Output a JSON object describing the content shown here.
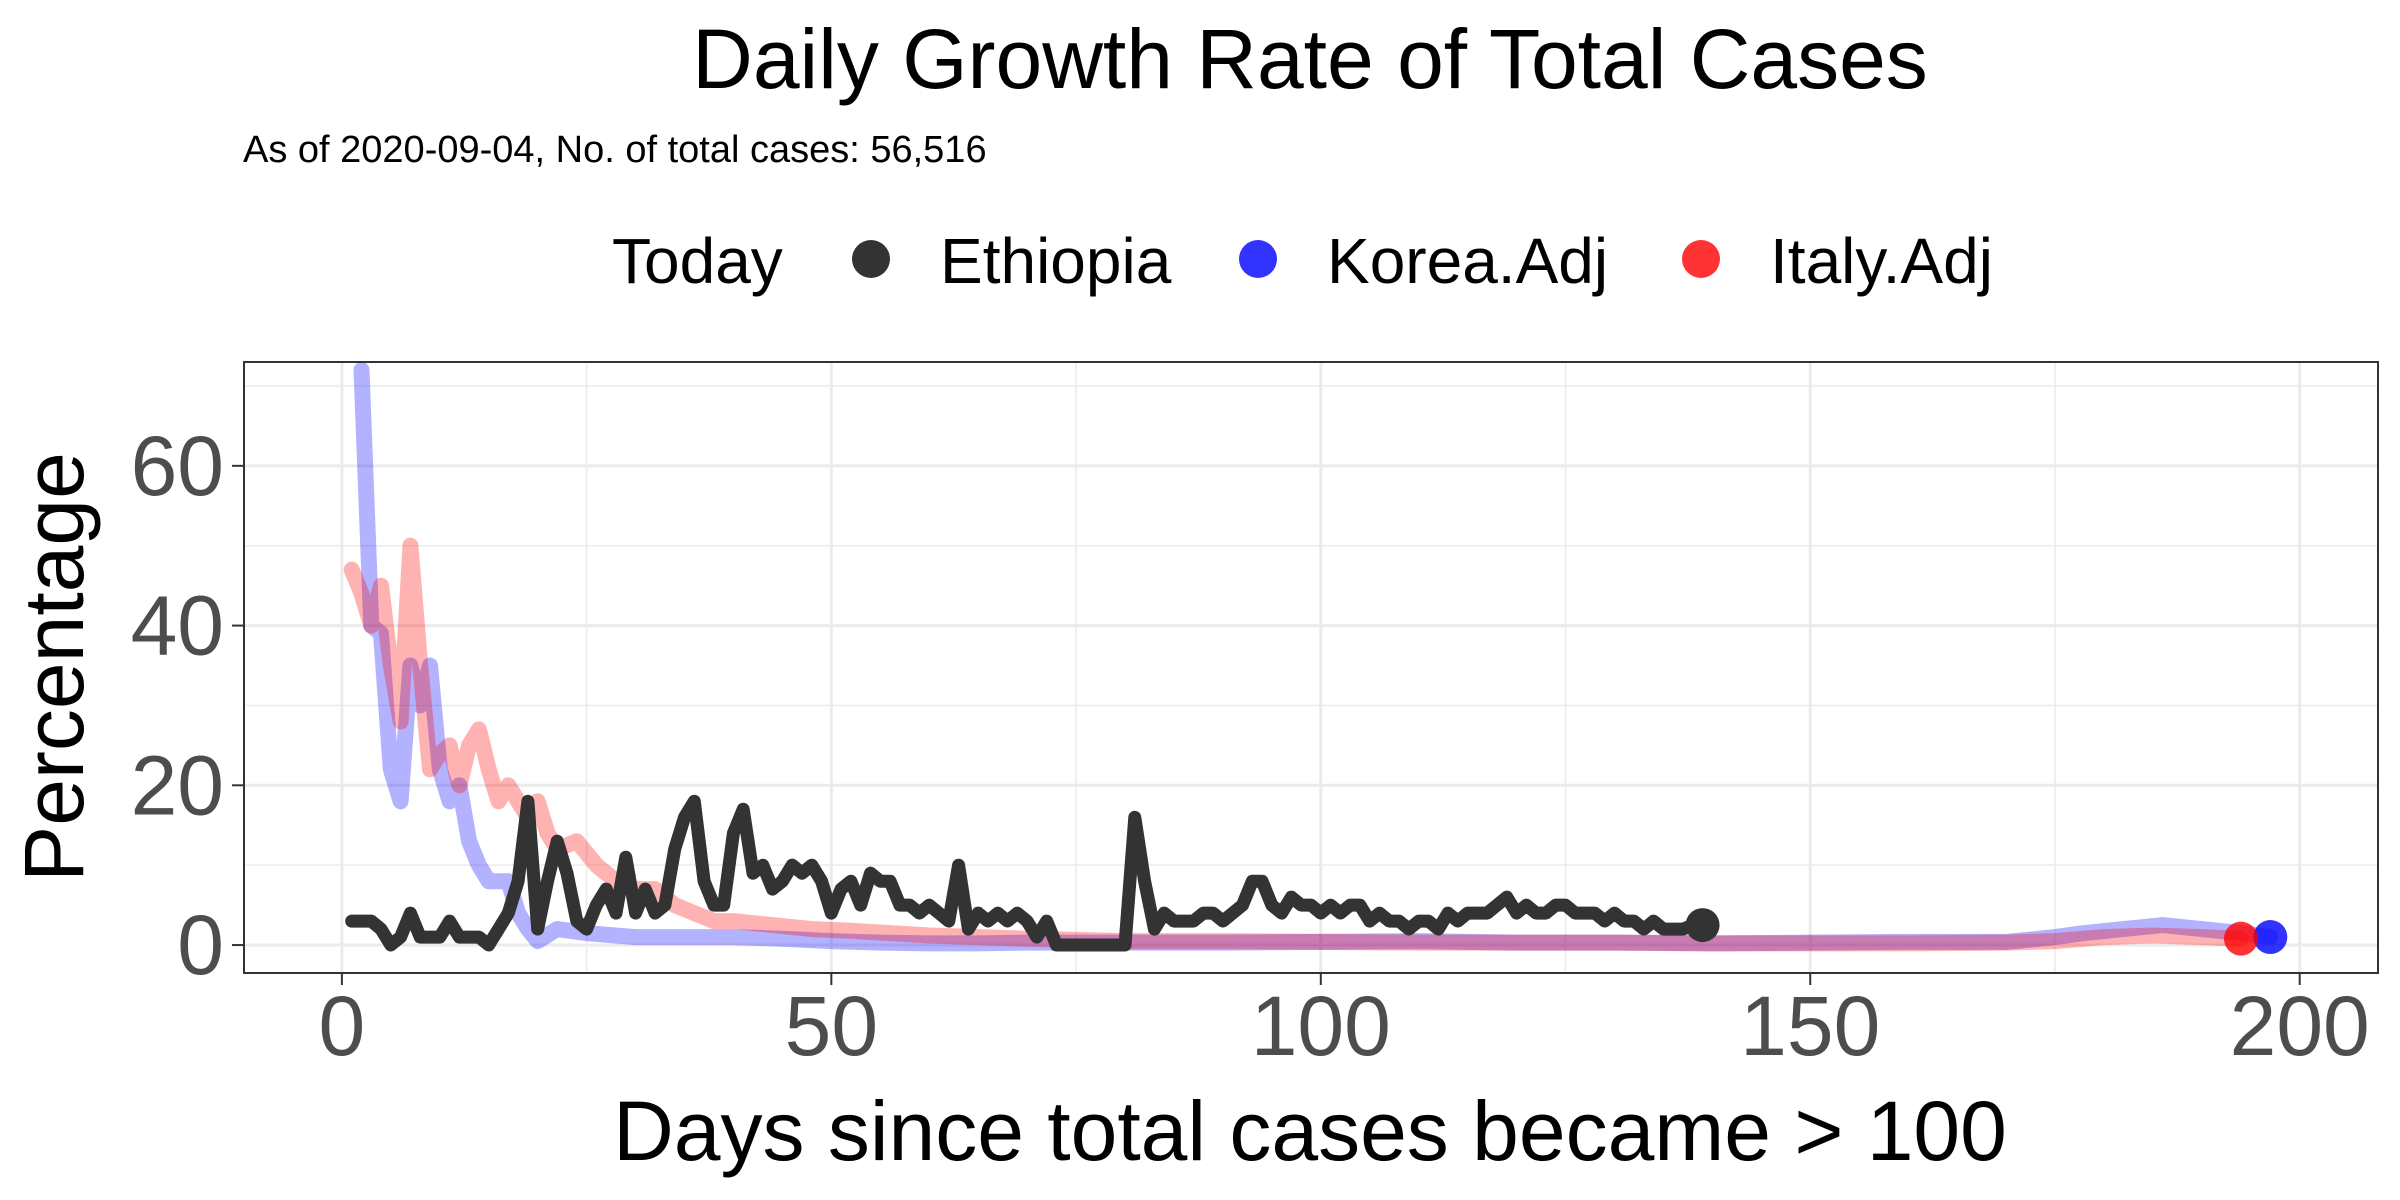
{
  "chart_data": {
    "type": "line",
    "title": "Daily Growth Rate of Total Cases",
    "subtitle": "As of 2020-09-04, No. of total cases: 56,516",
    "xlabel": "Days since total cases became > 100",
    "ylabel": "Percentage",
    "xlim": [
      -10,
      208
    ],
    "ylim": [
      -3.5,
      73
    ],
    "x_ticks": [
      0,
      50,
      100,
      150,
      200
    ],
    "y_ticks": [
      0,
      20,
      40,
      60
    ],
    "grid": true,
    "legend": {
      "position": "top",
      "title": "Today",
      "entries": [
        "Ethiopia",
        "Korea.Adj",
        "Italy.Adj"
      ]
    },
    "series": [
      {
        "name": "Korea.Adj",
        "color": "#0000ff",
        "line_opacity": 0.3,
        "points": [
          [
            2,
            72
          ],
          [
            3,
            40
          ],
          [
            4,
            39
          ],
          [
            5,
            22
          ],
          [
            6,
            18
          ],
          [
            7,
            35
          ],
          [
            8,
            30
          ],
          [
            9,
            35
          ],
          [
            10,
            22
          ],
          [
            11,
            18
          ],
          [
            12,
            20
          ],
          [
            13,
            13
          ],
          [
            14,
            10
          ],
          [
            15,
            8
          ],
          [
            16,
            8
          ],
          [
            17,
            8
          ],
          [
            18,
            4
          ],
          [
            19,
            2
          ],
          [
            20,
            0.5
          ],
          [
            22,
            2
          ],
          [
            25,
            1.5
          ],
          [
            30,
            1
          ],
          [
            35,
            1
          ],
          [
            40,
            1
          ],
          [
            45,
            0.8
          ],
          [
            50,
            0.5
          ],
          [
            55,
            0.3
          ],
          [
            60,
            0.2
          ],
          [
            65,
            0.2
          ],
          [
            70,
            0.3
          ],
          [
            80,
            0.3
          ],
          [
            90,
            0.3
          ],
          [
            100,
            0.4
          ],
          [
            110,
            0.5
          ],
          [
            120,
            0.3
          ],
          [
            130,
            0.3
          ],
          [
            140,
            0.2
          ],
          [
            150,
            0.3
          ],
          [
            160,
            0.4
          ],
          [
            170,
            0.4
          ],
          [
            175,
            1
          ],
          [
            178,
            1.5
          ],
          [
            182,
            2
          ],
          [
            186,
            2.5
          ],
          [
            190,
            2
          ],
          [
            194,
            1.5
          ],
          [
            197,
            1
          ]
        ],
        "today": [
          197,
          1
        ]
      },
      {
        "name": "Italy.Adj",
        "color": "#ff0000",
        "line_opacity": 0.3,
        "points": [
          [
            1,
            47
          ],
          [
            2,
            44
          ],
          [
            3,
            40
          ],
          [
            4,
            45
          ],
          [
            5,
            35
          ],
          [
            6,
            28
          ],
          [
            7,
            50
          ],
          [
            8,
            35
          ],
          [
            9,
            22
          ],
          [
            10,
            24
          ],
          [
            11,
            25
          ],
          [
            12,
            20
          ],
          [
            13,
            25
          ],
          [
            14,
            27
          ],
          [
            15,
            22
          ],
          [
            16,
            18
          ],
          [
            17,
            20
          ],
          [
            18,
            18
          ],
          [
            19,
            16
          ],
          [
            20,
            18
          ],
          [
            21,
            14
          ],
          [
            22,
            12
          ],
          [
            24,
            13
          ],
          [
            26,
            10
          ],
          [
            28,
            8
          ],
          [
            30,
            7
          ],
          [
            32,
            7
          ],
          [
            34,
            5
          ],
          [
            36,
            4
          ],
          [
            38,
            3
          ],
          [
            40,
            3
          ],
          [
            44,
            2.5
          ],
          [
            48,
            2
          ],
          [
            52,
            1.8
          ],
          [
            56,
            1.5
          ],
          [
            60,
            1.2
          ],
          [
            65,
            1
          ],
          [
            70,
            0.8
          ],
          [
            80,
            0.5
          ],
          [
            90,
            0.5
          ],
          [
            100,
            0.4
          ],
          [
            110,
            0.3
          ],
          [
            120,
            0.3
          ],
          [
            130,
            0.3
          ],
          [
            140,
            0.2
          ],
          [
            150,
            0.2
          ],
          [
            160,
            0.2
          ],
          [
            170,
            0.3
          ],
          [
            175,
            0.5
          ],
          [
            180,
            1
          ],
          [
            185,
            1.2
          ],
          [
            190,
            1
          ],
          [
            194,
            0.8
          ]
        ],
        "today": [
          194,
          0.8
        ]
      },
      {
        "name": "Ethiopia",
        "color": "#333333",
        "line_opacity": 1,
        "points": [
          [
            1,
            3
          ],
          [
            2,
            3
          ],
          [
            3,
            3
          ],
          [
            4,
            2
          ],
          [
            5,
            0
          ],
          [
            6,
            1
          ],
          [
            7,
            4
          ],
          [
            8,
            1
          ],
          [
            9,
            1
          ],
          [
            10,
            1
          ],
          [
            11,
            3
          ],
          [
            12,
            1
          ],
          [
            13,
            1
          ],
          [
            14,
            1
          ],
          [
            15,
            0
          ],
          [
            16,
            2
          ],
          [
            17,
            4
          ],
          [
            18,
            8
          ],
          [
            19,
            18
          ],
          [
            20,
            2
          ],
          [
            21,
            8
          ],
          [
            22,
            13
          ],
          [
            23,
            9
          ],
          [
            24,
            3
          ],
          [
            25,
            2
          ],
          [
            26,
            5
          ],
          [
            27,
            7
          ],
          [
            28,
            4
          ],
          [
            29,
            11
          ],
          [
            30,
            4
          ],
          [
            31,
            7
          ],
          [
            32,
            4
          ],
          [
            33,
            5
          ],
          [
            34,
            12
          ],
          [
            35,
            16
          ],
          [
            36,
            18
          ],
          [
            37,
            8
          ],
          [
            38,
            5
          ],
          [
            39,
            5
          ],
          [
            40,
            14
          ],
          [
            41,
            17
          ],
          [
            42,
            9
          ],
          [
            43,
            10
          ],
          [
            44,
            7
          ],
          [
            45,
            8
          ],
          [
            46,
            10
          ],
          [
            47,
            9
          ],
          [
            48,
            10
          ],
          [
            49,
            8
          ],
          [
            50,
            4
          ],
          [
            51,
            7
          ],
          [
            52,
            8
          ],
          [
            53,
            5
          ],
          [
            54,
            9
          ],
          [
            55,
            8
          ],
          [
            56,
            8
          ],
          [
            57,
            5
          ],
          [
            58,
            5
          ],
          [
            59,
            4
          ],
          [
            60,
            5
          ],
          [
            61,
            4
          ],
          [
            62,
            3
          ],
          [
            63,
            10
          ],
          [
            64,
            2
          ],
          [
            65,
            4
          ],
          [
            66,
            3
          ],
          [
            67,
            4
          ],
          [
            68,
            3
          ],
          [
            69,
            4
          ],
          [
            70,
            3
          ],
          [
            71,
            1
          ],
          [
            72,
            3
          ],
          [
            73,
            0
          ],
          [
            74,
            0
          ],
          [
            75,
            0
          ],
          [
            76,
            0
          ],
          [
            77,
            0
          ],
          [
            78,
            0
          ],
          [
            79,
            0
          ],
          [
            80,
            0
          ],
          [
            81,
            16
          ],
          [
            82,
            8
          ],
          [
            83,
            2
          ],
          [
            84,
            4
          ],
          [
            85,
            3
          ],
          [
            86,
            3
          ],
          [
            87,
            3
          ],
          [
            88,
            4
          ],
          [
            89,
            4
          ],
          [
            90,
            3
          ],
          [
            91,
            4
          ],
          [
            92,
            5
          ],
          [
            93,
            8
          ],
          [
            94,
            8
          ],
          [
            95,
            5
          ],
          [
            96,
            4
          ],
          [
            97,
            6
          ],
          [
            98,
            5
          ],
          [
            99,
            5
          ],
          [
            100,
            4
          ],
          [
            101,
            5
          ],
          [
            102,
            4
          ],
          [
            103,
            5
          ],
          [
            104,
            5
          ],
          [
            105,
            3
          ],
          [
            106,
            4
          ],
          [
            107,
            3
          ],
          [
            108,
            3
          ],
          [
            109,
            2
          ],
          [
            110,
            3
          ],
          [
            111,
            3
          ],
          [
            112,
            2
          ],
          [
            113,
            4
          ],
          [
            114,
            3
          ],
          [
            115,
            4
          ],
          [
            116,
            4
          ],
          [
            117,
            4
          ],
          [
            118,
            5
          ],
          [
            119,
            6
          ],
          [
            120,
            4
          ],
          [
            121,
            5
          ],
          [
            122,
            4
          ],
          [
            123,
            4
          ],
          [
            124,
            5
          ],
          [
            125,
            5
          ],
          [
            126,
            4
          ],
          [
            127,
            4
          ],
          [
            128,
            4
          ],
          [
            129,
            3
          ],
          [
            130,
            4
          ],
          [
            131,
            3
          ],
          [
            132,
            3
          ],
          [
            133,
            2
          ],
          [
            134,
            3
          ],
          [
            135,
            2
          ],
          [
            136,
            2
          ],
          [
            137,
            2
          ],
          [
            138,
            2.5
          ],
          [
            139,
            2.5
          ]
        ],
        "today": [
          139,
          2.5
        ]
      }
    ]
  }
}
